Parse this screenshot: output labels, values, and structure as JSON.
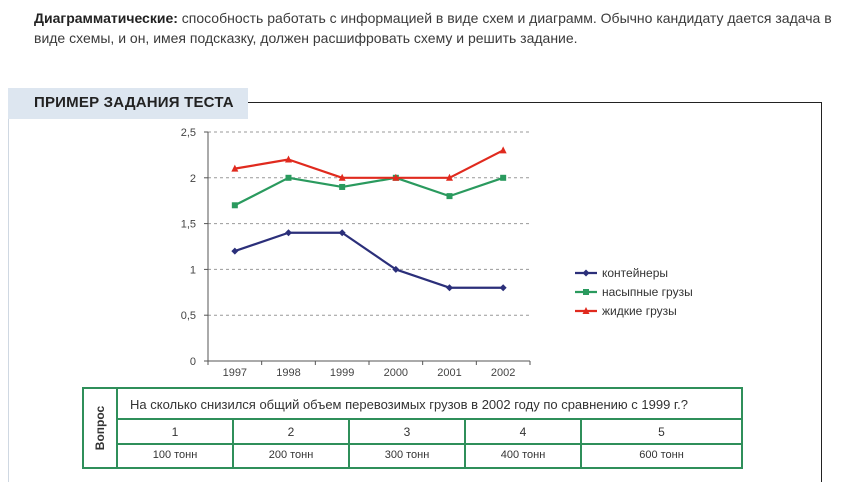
{
  "intro": {
    "lead": "Диаграмматические:",
    "text": " способность работать с информацией в виде схем и диаграмм. Обычно кандидату дается задача в виде схемы, и он, имея подсказку, должен расшифровать схему и решить задание."
  },
  "section_label": "ПРИМЕР ЗАДАНИЯ ТЕСТА",
  "chart_data": {
    "type": "line",
    "x": [
      "1997",
      "1998",
      "1999",
      "2000",
      "2001",
      "2002"
    ],
    "y_ticks": [
      "0",
      "0,5",
      "1",
      "1,5",
      "2",
      "2,5"
    ],
    "ylim": [
      0,
      2.5
    ],
    "grid": "dashed horizontal",
    "legend_position": "right",
    "series": [
      {
        "name": "контейнеры",
        "values": [
          1.2,
          1.4,
          1.4,
          1.0,
          0.8,
          0.8
        ],
        "color": "#2b2f7a",
        "marker": "diamond"
      },
      {
        "name": "насыпные грузы",
        "values": [
          1.7,
          2.0,
          1.9,
          2.0,
          1.8,
          2.0
        ],
        "color": "#2a9a5e",
        "marker": "square"
      },
      {
        "name": "жидкие грузы",
        "values": [
          2.1,
          2.2,
          2.0,
          2.0,
          2.0,
          2.3
        ],
        "color": "#e02a1e",
        "marker": "triangle"
      }
    ]
  },
  "question": {
    "side_label": "Вопрос",
    "text": "На сколько снизился общий объем перевозимых грузов в 2002 году по сравнению с 1999 г.?",
    "numbers": [
      "1",
      "2",
      "3",
      "4",
      "5"
    ],
    "options": [
      "100 тонн",
      "200 тонн",
      "300 тонн",
      "400 тонн",
      "600 тонн"
    ]
  },
  "colors": {
    "table_border": "#2f8f5a",
    "label_bg": "#dde6f0"
  }
}
